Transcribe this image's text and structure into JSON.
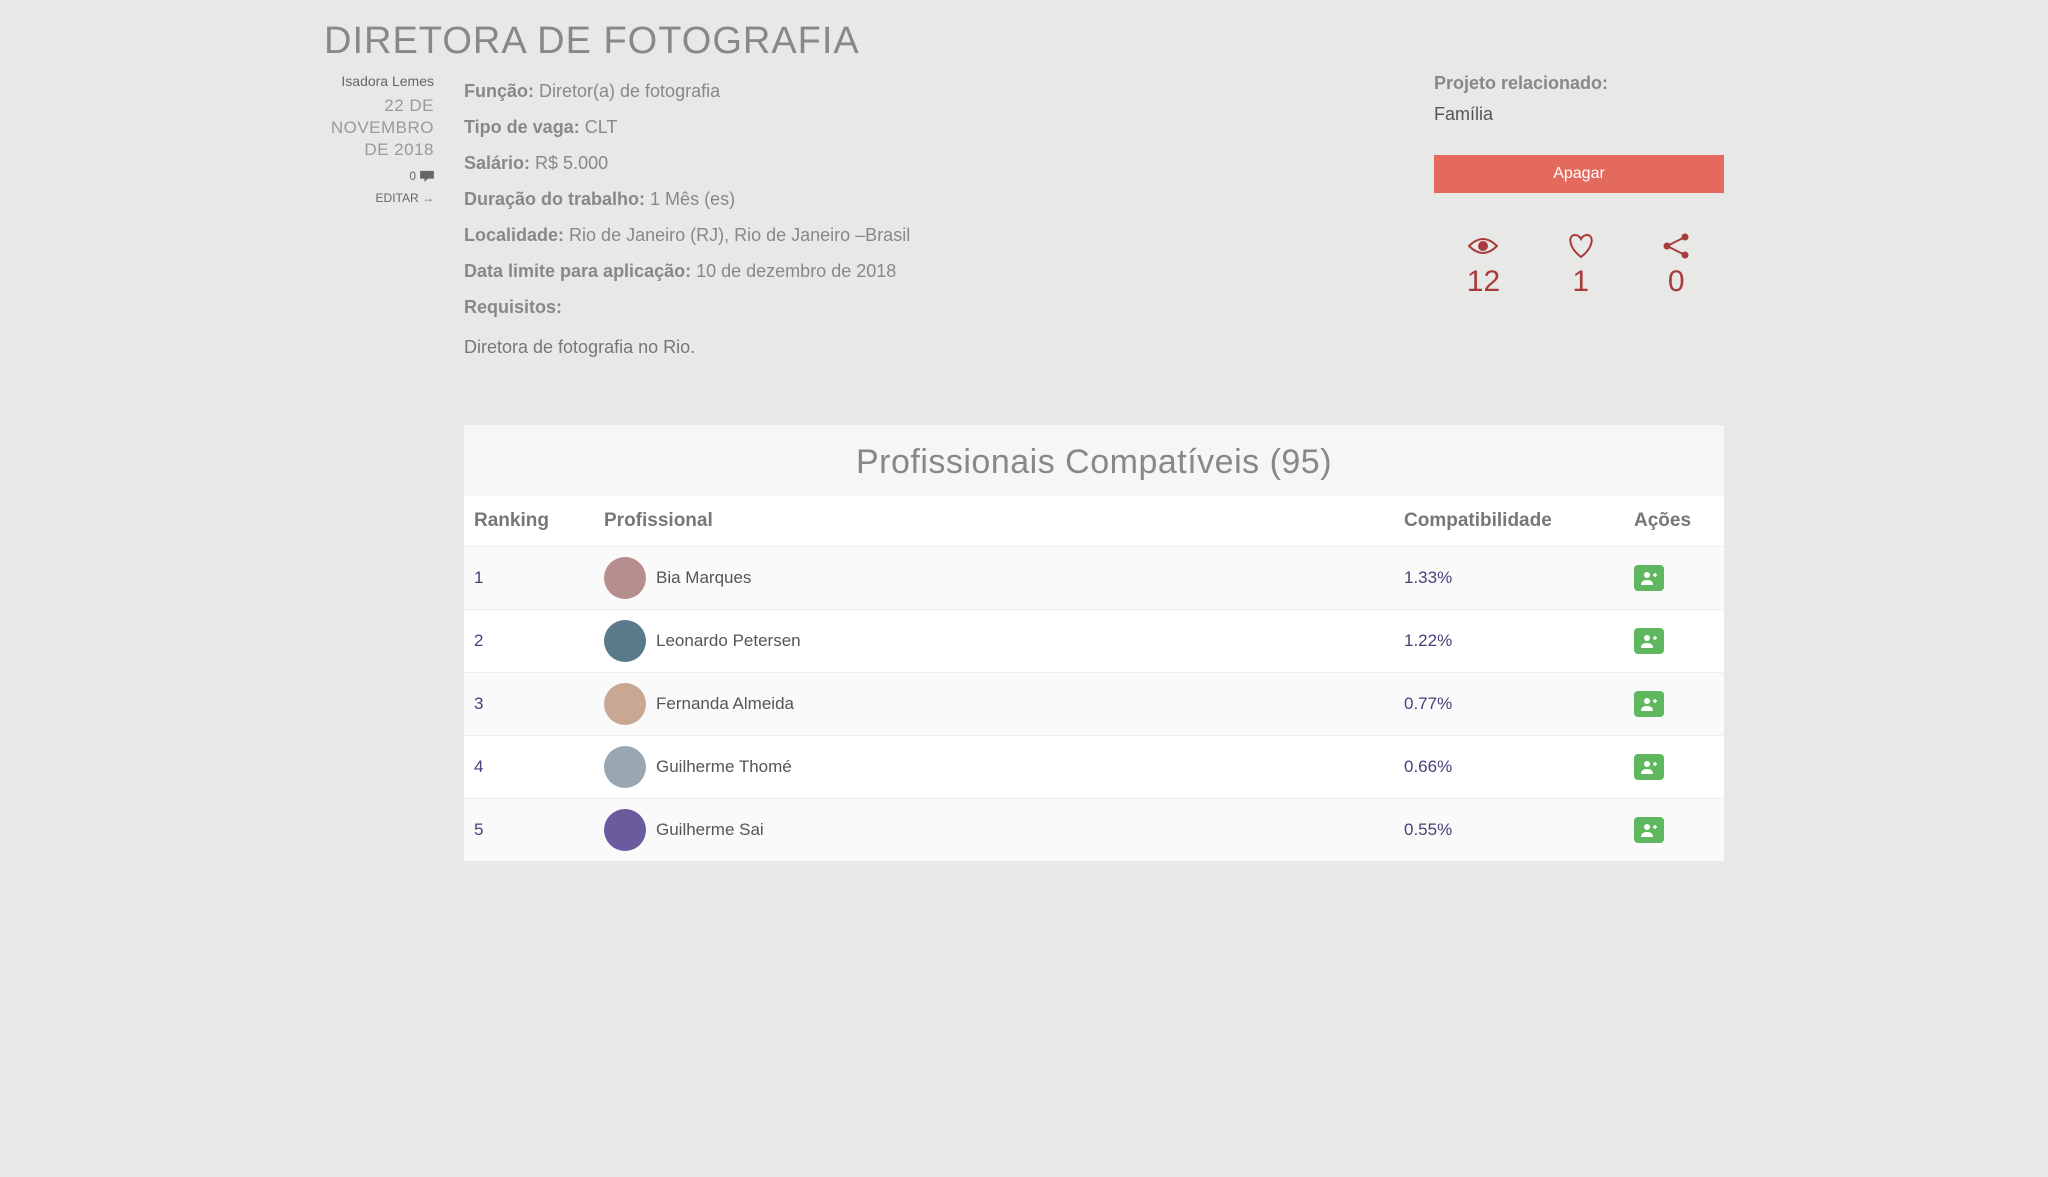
{
  "page_title": "DIRETORA DE FOTOGRAFIA",
  "meta": {
    "author": "Isadora Lemes",
    "date": "22 de novembro de 2018",
    "comments": "0",
    "edit_label": "EDITAR →"
  },
  "details": {
    "funcao_label": "Função:",
    "funcao_value": "Diretor(a) de fotografia",
    "tipo_label": "Tipo de vaga:",
    "tipo_value": "CLT",
    "salario_label": "Salário:",
    "salario_value": "R$ 5.000",
    "duracao_label": "Duração do trabalho:",
    "duracao_value": "1 Mês (es)",
    "localidade_label": "Localidade:",
    "localidade_value": "Rio de Janeiro (RJ), Rio de Janeiro –Brasil",
    "limite_label": "Data limite para aplicação:",
    "limite_value": "10 de dezembro de 2018",
    "requisitos_label": "Requisitos:",
    "requisitos_body": "Diretora de fotografia no Rio."
  },
  "right": {
    "related_label": "Projeto relacionado:",
    "related_value": "Família",
    "delete_label": "Apagar",
    "stats": {
      "views": "12",
      "likes": "1",
      "shares": "0"
    }
  },
  "table": {
    "title": "Profissionais compatíveis (95)",
    "columns": {
      "ranking": "Ranking",
      "profissional": "Profissional",
      "compat": "Compatibilidade",
      "acoes": "Ações"
    },
    "rows": [
      {
        "rank": "1",
        "name": "Bia Marques",
        "compat": "1.33%",
        "avatar_bg": "#b78e8e"
      },
      {
        "rank": "2",
        "name": "Leonardo Petersen",
        "compat": "1.22%",
        "avatar_bg": "#5a7a8a"
      },
      {
        "rank": "3",
        "name": "Fernanda Almeida",
        "compat": "0.77%",
        "avatar_bg": "#c9a893"
      },
      {
        "rank": "4",
        "name": "Guilherme Thomé",
        "compat": "0.66%",
        "avatar_bg": "#9aa7b0"
      },
      {
        "rank": "5",
        "name": "Guilherme Sai",
        "compat": "0.55%",
        "avatar_bg": "#6b5a9e"
      }
    ]
  },
  "colors": {
    "accent_red": "#a83b3b",
    "btn_danger": "#e46a5e",
    "btn_success": "#5fb85f",
    "text_muted": "#888",
    "link_purple": "#4a3e7a"
  }
}
